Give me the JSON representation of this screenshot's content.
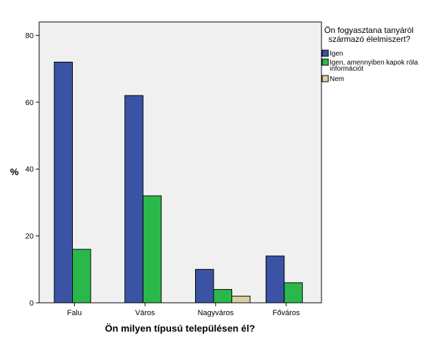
{
  "chart_data": {
    "type": "bar",
    "title": "",
    "xlabel": "Ön milyen típusú településen él?",
    "ylabel": "%",
    "categories": [
      "Falu",
      "Város",
      "Nagyváros",
      "Főváros"
    ],
    "ylim": [
      0,
      84
    ],
    "yticks": [
      0,
      20,
      40,
      60,
      80
    ],
    "grid": false,
    "legend_position": "right",
    "legend_title_lines": [
      "Ön fogyasztana tanyáról",
      "származó élelmiszert?"
    ],
    "series": [
      {
        "name": "Igen",
        "color": "#3a53a4",
        "values": [
          72,
          62,
          10,
          14
        ]
      },
      {
        "name": "Igen, amennyiben kapok róla információt",
        "label_lines": [
          "Igen, amennyiben kapok róla",
          "információt"
        ],
        "color": "#2bb84a",
        "values": [
          16,
          32,
          4,
          6
        ]
      },
      {
        "name": "Nem",
        "color": "#d7cf9e",
        "values": [
          0,
          0,
          2,
          0
        ]
      }
    ],
    "plot_background": "#f0f0f0"
  }
}
